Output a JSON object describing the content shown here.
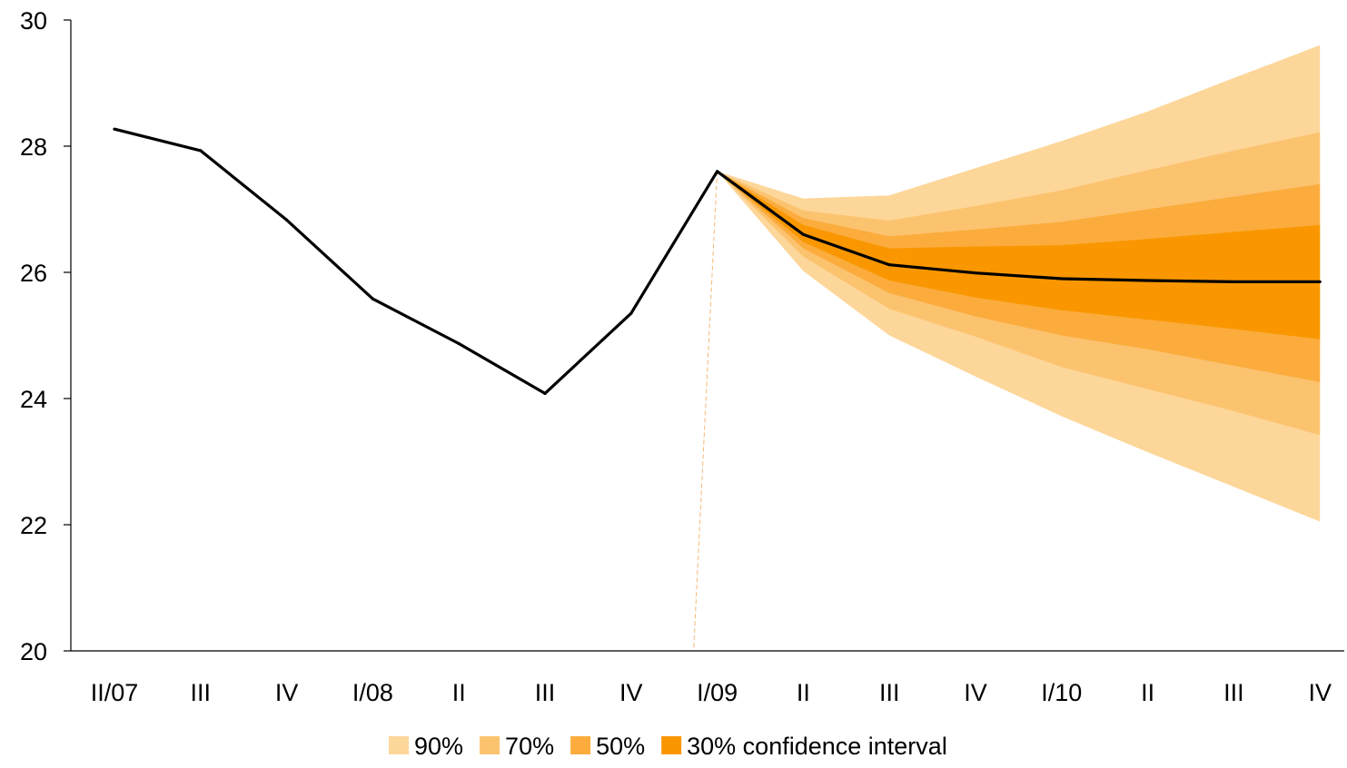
{
  "chart_data": {
    "type": "line",
    "title": "",
    "xlabel": "",
    "ylabel": "",
    "categories": [
      "II/07",
      "III",
      "IV",
      "I/08",
      "II",
      "III",
      "IV",
      "I/09",
      "II",
      "III",
      "IV",
      "I/10",
      "II",
      "III",
      "IV"
    ],
    "ylim": [
      20,
      30
    ],
    "yticks": [
      20,
      22,
      24,
      26,
      28,
      30
    ],
    "grid": false,
    "series": [
      {
        "values": [
          28.27,
          27.93,
          26.83,
          25.58,
          24.87,
          24.08,
          25.35,
          27.6,
          26.6,
          26.12,
          25.99,
          25.9,
          25.87,
          25.85,
          25.85
        ]
      }
    ],
    "fan_start_index": 7,
    "fan_bands": [
      {
        "name": "90%",
        "color": "#FDD699",
        "upper": [
          27.6,
          27.17,
          27.22,
          27.65,
          28.08,
          28.55,
          29.08,
          29.6
        ],
        "lower": [
          27.6,
          26.02,
          25.0,
          24.35,
          23.72,
          23.15,
          22.6,
          22.05
        ]
      },
      {
        "name": "70%",
        "color": "#FCC36F",
        "upper": [
          27.6,
          26.98,
          26.82,
          27.05,
          27.3,
          27.62,
          27.93,
          28.22
        ],
        "lower": [
          27.6,
          26.25,
          25.42,
          24.98,
          24.5,
          24.15,
          23.8,
          23.42
        ]
      },
      {
        "name": "50%",
        "color": "#FBAC3D",
        "upper": [
          27.6,
          26.86,
          26.57,
          26.68,
          26.8,
          27.0,
          27.2,
          27.4
        ],
        "lower": [
          27.6,
          26.38,
          25.67,
          25.3,
          25.0,
          24.78,
          24.52,
          24.26
        ]
      },
      {
        "name": "30%",
        "color": "#FA9700",
        "upper": [
          27.6,
          26.75,
          26.38,
          26.41,
          26.43,
          26.53,
          26.64,
          26.75
        ],
        "lower": [
          27.6,
          26.48,
          25.87,
          25.6,
          25.4,
          25.25,
          25.1,
          24.94
        ]
      }
    ],
    "legend": {
      "position": "bottom",
      "items": [
        {
          "label": "90%",
          "color": "#FDD699"
        },
        {
          "label": "70%",
          "color": "#FCC36F"
        },
        {
          "label": "50%",
          "color": "#FBAC3D"
        },
        {
          "label": "30% confidence interval",
          "color": "#FA9700"
        }
      ]
    }
  }
}
